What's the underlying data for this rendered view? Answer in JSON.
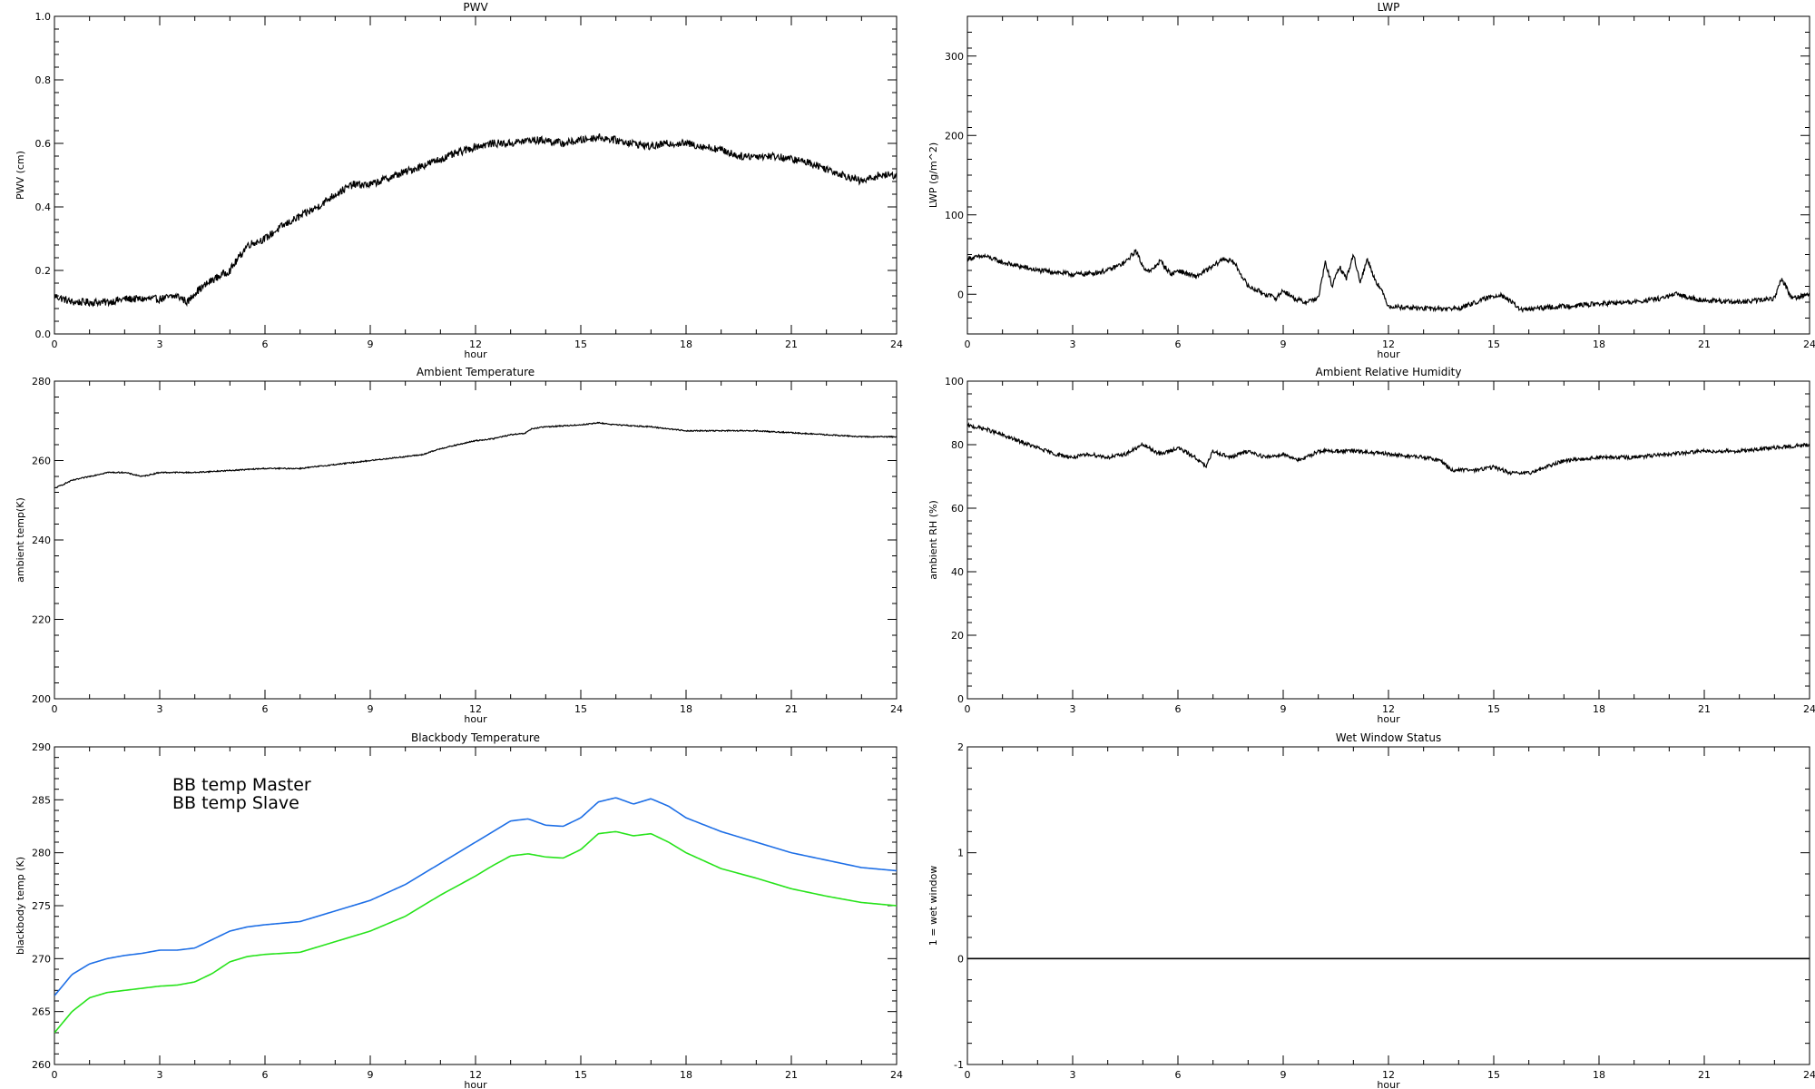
{
  "chart_data": [
    {
      "type": "line",
      "title": "PWV",
      "xlabel": "hour",
      "ylabel": "PWV (cm)",
      "xlim": [
        0,
        24
      ],
      "ylim": [
        0.0,
        1.0
      ],
      "xticks": [
        0,
        3,
        6,
        9,
        12,
        15,
        18,
        21,
        24
      ],
      "yticks": [
        0.0,
        0.2,
        0.4,
        0.6,
        0.8,
        1.0
      ],
      "ytick_labels": [
        "0.0",
        "0.2",
        "0.4",
        "0.6",
        "0.8",
        "1.0"
      ],
      "grid": false,
      "series": [
        {
          "color": "#000000",
          "noise": 0.012,
          "x": [
            0,
            0.5,
            1,
            1.5,
            2,
            2.5,
            3,
            3.5,
            3.8,
            4,
            4.5,
            5,
            5.5,
            6,
            6.5,
            7,
            7.5,
            8,
            8.5,
            9,
            9.5,
            10,
            10.5,
            11,
            11.5,
            12,
            12.5,
            13,
            13.5,
            14,
            14.5,
            15,
            15.5,
            16,
            16.5,
            17,
            17.5,
            18,
            18.5,
            19,
            19.5,
            20,
            20.5,
            21,
            21.5,
            22,
            22.5,
            23,
            23.5,
            24
          ],
          "y": [
            0.12,
            0.1,
            0.1,
            0.1,
            0.11,
            0.11,
            0.11,
            0.12,
            0.1,
            0.13,
            0.17,
            0.2,
            0.28,
            0.3,
            0.34,
            0.37,
            0.4,
            0.44,
            0.47,
            0.47,
            0.49,
            0.51,
            0.53,
            0.55,
            0.57,
            0.59,
            0.6,
            0.6,
            0.61,
            0.61,
            0.6,
            0.61,
            0.62,
            0.61,
            0.6,
            0.59,
            0.6,
            0.6,
            0.59,
            0.58,
            0.56,
            0.56,
            0.56,
            0.55,
            0.54,
            0.52,
            0.5,
            0.48,
            0.5,
            0.5
          ]
        }
      ]
    },
    {
      "type": "line",
      "title": "LWP",
      "xlabel": "hour",
      "ylabel": "LWP (g/m^2)",
      "xlim": [
        0,
        24
      ],
      "ylim": [
        -50,
        350
      ],
      "xticks": [
        0,
        3,
        6,
        9,
        12,
        15,
        18,
        21,
        24
      ],
      "yticks": [
        0,
        100,
        200,
        300
      ],
      "ytick_labels": [
        "0",
        "100",
        "200",
        "300"
      ],
      "grid": false,
      "series": [
        {
          "color": "#000000",
          "noise": 3,
          "x": [
            0,
            0.5,
            1,
            1.5,
            2,
            2.5,
            3,
            3.5,
            4,
            4.5,
            4.8,
            5,
            5.2,
            5.5,
            5.8,
            6,
            6.5,
            7,
            7.3,
            7.6,
            8,
            8.5,
            8.8,
            9,
            9.3,
            9.6,
            10,
            10.2,
            10.4,
            10.6,
            10.8,
            11,
            11.2,
            11.4,
            11.6,
            11.8,
            12,
            13,
            14,
            14.8,
            15.2,
            15.5,
            15.8,
            16.2,
            17,
            18,
            19,
            19.8,
            20.2,
            21,
            22,
            22.5,
            23,
            23.2,
            23.5,
            24
          ],
          "y": [
            45,
            48,
            40,
            35,
            30,
            28,
            25,
            26,
            30,
            40,
            55,
            35,
            28,
            42,
            25,
            30,
            22,
            35,
            45,
            40,
            10,
            0,
            -5,
            5,
            -5,
            -10,
            -5,
            40,
            10,
            35,
            20,
            50,
            15,
            45,
            20,
            5,
            -15,
            -18,
            -18,
            -5,
            0,
            -10,
            -20,
            -18,
            -15,
            -12,
            -10,
            -5,
            0,
            -8,
            -10,
            -8,
            -5,
            20,
            -5,
            0
          ]
        }
      ]
    },
    {
      "type": "line",
      "title": "Ambient Temperature",
      "xlabel": "hour",
      "ylabel": "ambient temp(K)",
      "xlim": [
        0,
        24
      ],
      "ylim": [
        200,
        280
      ],
      "xticks": [
        0,
        3,
        6,
        9,
        12,
        15,
        18,
        21,
        24
      ],
      "yticks": [
        200,
        220,
        240,
        260,
        280
      ],
      "ytick_labels": [
        "200",
        "220",
        "240",
        "260",
        "280"
      ],
      "grid": false,
      "series": [
        {
          "color": "#000000",
          "noise": 0.15,
          "x": [
            0,
            0.5,
            1,
            1.5,
            2,
            2.5,
            3,
            3.5,
            4,
            5,
            6,
            7,
            8,
            9,
            10,
            10.5,
            11,
            11.5,
            12,
            12.5,
            13,
            13.4,
            13.6,
            14,
            15,
            15.5,
            16,
            17,
            18,
            19,
            20,
            21,
            22,
            23,
            24
          ],
          "y": [
            253,
            255,
            256,
            257,
            257,
            256,
            257,
            257,
            257,
            257.5,
            258,
            258,
            259,
            260,
            261,
            261.5,
            263,
            264,
            265,
            265.5,
            266.5,
            266.8,
            268,
            268.5,
            269,
            269.5,
            269,
            268.5,
            267.5,
            267.5,
            267.5,
            267,
            266.5,
            266,
            266
          ]
        }
      ]
    },
    {
      "type": "line",
      "title": "Ambient Relative Humidity",
      "xlabel": "hour",
      "ylabel": "ambient RH (%)",
      "xlim": [
        0,
        24
      ],
      "ylim": [
        0,
        100
      ],
      "xticks": [
        0,
        3,
        6,
        9,
        12,
        15,
        18,
        21,
        24
      ],
      "yticks": [
        0,
        20,
        40,
        60,
        80,
        100
      ],
      "ytick_labels": [
        "0",
        "20",
        "40",
        "60",
        "80",
        "100"
      ],
      "grid": false,
      "series": [
        {
          "color": "#000000",
          "noise": 0.6,
          "x": [
            0,
            0.5,
            1,
            1.5,
            2,
            2.5,
            3,
            3.5,
            4,
            4.5,
            5,
            5.5,
            6,
            6.5,
            6.8,
            7,
            7.5,
            8,
            8.5,
            9,
            9.5,
            10,
            11,
            12,
            13,
            13.5,
            13.8,
            14.5,
            15,
            15.5,
            16,
            16.5,
            17,
            18,
            19,
            20,
            21,
            22,
            23,
            24
          ],
          "y": [
            86,
            85,
            83,
            81,
            79,
            77,
            76,
            77,
            76,
            77,
            80,
            77,
            79,
            76,
            73,
            78,
            76,
            78,
            76,
            77,
            75,
            78,
            78,
            77,
            76,
            75,
            72,
            72,
            73,
            71,
            71,
            73,
            75,
            76,
            76,
            77,
            78,
            78,
            79,
            80
          ]
        }
      ]
    },
    {
      "type": "line",
      "title": "Blackbody Temperature",
      "xlabel": "hour",
      "ylabel": "blackbody temp (K)",
      "xlim": [
        0,
        24
      ],
      "ylim": [
        260,
        290
      ],
      "xticks": [
        0,
        3,
        6,
        9,
        12,
        15,
        18,
        21,
        24
      ],
      "yticks": [
        260,
        265,
        270,
        275,
        280,
        285,
        290
      ],
      "ytick_labels": [
        "260",
        "265",
        "270",
        "275",
        "280",
        "285",
        "290"
      ],
      "grid": false,
      "legend": "top-left",
      "series": [
        {
          "name": "BB temp Master",
          "color": "#1e6fe6",
          "noise": 0,
          "x": [
            0,
            0.5,
            1,
            1.5,
            2,
            2.5,
            3,
            3.5,
            4,
            4.5,
            5,
            5.5,
            6,
            7,
            8,
            9,
            10,
            11,
            12,
            12.5,
            13,
            13.5,
            14,
            14.5,
            15,
            15.5,
            16,
            16.5,
            17,
            17.5,
            18,
            19,
            20,
            21,
            22,
            23,
            24
          ],
          "y": [
            266.5,
            268.5,
            269.5,
            270,
            270.3,
            270.5,
            270.8,
            270.8,
            271,
            271.8,
            272.6,
            273,
            273.2,
            273.5,
            274.5,
            275.5,
            277,
            279,
            281,
            282,
            283,
            283.2,
            282.6,
            282.5,
            283.3,
            284.8,
            285.2,
            284.6,
            285.1,
            284.4,
            283.3,
            282,
            281,
            280,
            279.3,
            278.6,
            278.3
          ]
        },
        {
          "name": "BB temp Slave",
          "color": "#27e31b",
          "noise": 0,
          "x": [
            0,
            0.5,
            1,
            1.5,
            2,
            2.5,
            3,
            3.5,
            4,
            4.5,
            5,
            5.5,
            6,
            7,
            8,
            9,
            10,
            11,
            12,
            12.5,
            13,
            13.5,
            14,
            14.5,
            15,
            15.5,
            16,
            16.5,
            17,
            17.5,
            18,
            19,
            20,
            21,
            22,
            23,
            24
          ],
          "y": [
            263,
            265,
            266.3,
            266.8,
            267,
            267.2,
            267.4,
            267.5,
            267.8,
            268.6,
            269.7,
            270.2,
            270.4,
            270.6,
            271.6,
            272.6,
            274,
            276,
            277.8,
            278.8,
            279.7,
            279.9,
            279.6,
            279.5,
            280.3,
            281.8,
            282,
            281.6,
            281.8,
            281,
            280,
            278.5,
            277.6,
            276.6,
            275.9,
            275.3,
            275
          ]
        }
      ]
    },
    {
      "type": "line",
      "title": "Wet Window Status",
      "xlabel": "hour",
      "ylabel": "1 = wet window",
      "xlim": [
        0,
        24
      ],
      "ylim": [
        -1,
        2
      ],
      "xticks": [
        0,
        3,
        6,
        9,
        12,
        15,
        18,
        21,
        24
      ],
      "yticks": [
        -1,
        0,
        1,
        2
      ],
      "ytick_labels": [
        "-1",
        "0",
        "1",
        "2"
      ],
      "grid": false,
      "series": [
        {
          "color": "#000000",
          "noise": 0,
          "x": [
            0,
            24
          ],
          "y": [
            0,
            0
          ]
        }
      ]
    }
  ]
}
